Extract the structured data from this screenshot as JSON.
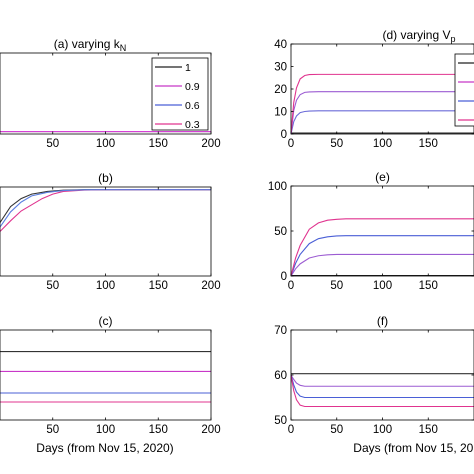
{
  "chart_data": [
    {
      "id": "a",
      "type": "line",
      "title": "(a) varying k",
      "title_sub": "N",
      "xlabel": "",
      "ylabel": "",
      "xlim": [
        0,
        200
      ],
      "xticks": [
        50,
        100,
        150,
        200
      ],
      "ylim": [
        0,
        1
      ],
      "yticks": [],
      "grid": false,
      "legend": {
        "placement": "top-right",
        "entries": [
          "1",
          "0.9",
          "0.6",
          "0.3"
        ]
      },
      "series": [
        {
          "color": "#444444",
          "x": [
            0,
            200
          ],
          "y": [
            0.03,
            0.03
          ]
        },
        {
          "color": "#d63fd6",
          "x": [
            0,
            200
          ],
          "y": [
            0.03,
            0.03
          ]
        }
      ]
    },
    {
      "id": "d",
      "type": "line",
      "title": "(d) varying V",
      "title_sub": "p",
      "xlabel": "",
      "ylabel": "",
      "xlim": [
        0,
        200
      ],
      "xticks": [
        0,
        50,
        100,
        150
      ],
      "ylim": [
        0,
        40
      ],
      "yticks": [
        0,
        10,
        20,
        30,
        40
      ],
      "grid": false,
      "legend": {
        "placement": "top-right",
        "entries": []
      },
      "series": [
        {
          "color": "#222222",
          "x": [
            0,
            200
          ],
          "y": [
            0.4,
            0.4
          ]
        },
        {
          "color": "#6b6bd8",
          "x": [
            0,
            3,
            6,
            10,
            15,
            20,
            30,
            200
          ],
          "y": [
            0,
            5.5,
            8,
            9.5,
            10,
            10.2,
            10.3,
            10.3
          ]
        },
        {
          "color": "#9c5cd2",
          "x": [
            0,
            3,
            6,
            10,
            15,
            20,
            30,
            200
          ],
          "y": [
            0,
            10.5,
            15,
            17.5,
            18.5,
            18.7,
            18.8,
            18.8
          ]
        },
        {
          "color": "#e0348f",
          "x": [
            0,
            3,
            6,
            10,
            15,
            20,
            30,
            200
          ],
          "y": [
            0,
            14,
            20.5,
            24.5,
            26,
            26.4,
            26.5,
            26.5
          ]
        }
      ]
    },
    {
      "id": "b",
      "type": "line",
      "title": "(b)",
      "xlabel": "",
      "ylabel": "",
      "xlim": [
        0,
        200
      ],
      "xticks": [
        50,
        100,
        150,
        200
      ],
      "ylim": [
        0,
        1
      ],
      "yticks": [],
      "grid": false,
      "legend": null,
      "series": [
        {
          "color": "#333333",
          "x": [
            0,
            10,
            20,
            30,
            45,
            60,
            80,
            100,
            200
          ],
          "y": [
            0.6,
            0.78,
            0.87,
            0.92,
            0.95,
            0.965,
            0.97,
            0.97,
            0.97
          ]
        },
        {
          "color": "#e0348f",
          "x": [
            0,
            10,
            20,
            30,
            40,
            50,
            60,
            80,
            100,
            200
          ],
          "y": [
            0.5,
            0.62,
            0.73,
            0.8,
            0.87,
            0.92,
            0.95,
            0.965,
            0.97,
            0.97
          ]
        },
        {
          "color": "#5b7ee0",
          "x": [
            0,
            10,
            20,
            30,
            45,
            60,
            80,
            100,
            200
          ],
          "y": [
            0.55,
            0.72,
            0.83,
            0.9,
            0.94,
            0.96,
            0.968,
            0.97,
            0.97
          ]
        }
      ]
    },
    {
      "id": "e",
      "type": "line",
      "title": "(e)",
      "xlabel": "",
      "ylabel": "",
      "xlim": [
        0,
        200
      ],
      "xticks": [
        0,
        50,
        100,
        150
      ],
      "ylim": [
        0,
        100
      ],
      "yticks": [
        0,
        50,
        100
      ],
      "grid": false,
      "legend": null,
      "series": [
        {
          "color": "#222222",
          "x": [
            0,
            200
          ],
          "y": [
            0.5,
            0.5
          ]
        },
        {
          "color": "#9c5cd2",
          "x": [
            0,
            5,
            10,
            20,
            30,
            40,
            50,
            60,
            200
          ],
          "y": [
            0,
            8,
            13.5,
            20,
            22.5,
            23.5,
            24,
            24,
            24
          ]
        },
        {
          "color": "#4a5fd6",
          "x": [
            0,
            5,
            10,
            20,
            30,
            40,
            50,
            60,
            200
          ],
          "y": [
            0,
            14,
            24,
            36,
            41.5,
            43.5,
            44.5,
            44.8,
            44.8
          ]
        },
        {
          "color": "#e0348f",
          "x": [
            0,
            5,
            10,
            20,
            30,
            40,
            50,
            60,
            200
          ],
          "y": [
            0,
            20,
            34,
            52,
            59,
            62,
            63,
            63.5,
            63.5
          ]
        }
      ]
    },
    {
      "id": "c",
      "type": "line",
      "title": "(c)",
      "xlabel": "Days (from Nov 15, 2020)",
      "ylabel": "",
      "xlim": [
        0,
        200
      ],
      "xticks": [
        50,
        100,
        150,
        200
      ],
      "ylim": [
        0,
        1
      ],
      "yticks": [],
      "grid": false,
      "legend": null,
      "series": [
        {
          "color": "#333333",
          "x": [
            0,
            200
          ],
          "y": [
            0.76,
            0.76
          ]
        },
        {
          "color": "#c838c8",
          "x": [
            0,
            200
          ],
          "y": [
            0.54,
            0.54
          ]
        },
        {
          "color": "#4a5fd6",
          "x": [
            0,
            200
          ],
          "y": [
            0.3,
            0.3
          ]
        },
        {
          "color": "#e0348f",
          "x": [
            0,
            200
          ],
          "y": [
            0.2,
            0.2
          ]
        }
      ]
    },
    {
      "id": "f",
      "type": "line",
      "title": "(f)",
      "xlabel": "Days (from Nov 15, 2020",
      "ylabel": "",
      "xlim": [
        0,
        200
      ],
      "xticks": [
        0,
        50,
        100,
        150
      ],
      "ylim": [
        50,
        70
      ],
      "yticks": [
        50,
        60,
        70
      ],
      "grid": false,
      "legend": null,
      "series": [
        {
          "color": "#333333",
          "x": [
            0,
            200
          ],
          "y": [
            60.3,
            60.3
          ]
        },
        {
          "color": "#9c5cd2",
          "x": [
            0,
            3,
            6,
            10,
            15,
            20,
            200
          ],
          "y": [
            60,
            59,
            58.2,
            57.7,
            57.5,
            57.5,
            57.5
          ]
        },
        {
          "color": "#4a5fd6",
          "x": [
            0,
            3,
            6,
            10,
            15,
            20,
            200
          ],
          "y": [
            60,
            57.8,
            56.2,
            55.3,
            55,
            55,
            55
          ]
        },
        {
          "color": "#e0348f",
          "x": [
            0,
            3,
            6,
            10,
            15,
            20,
            200
          ],
          "y": [
            60,
            56.5,
            54.5,
            53.3,
            53,
            53,
            53
          ]
        }
      ]
    }
  ],
  "legend_line_colors": [
    "#222222",
    "#c838c8",
    "#4a5fd6",
    "#e0348f"
  ]
}
